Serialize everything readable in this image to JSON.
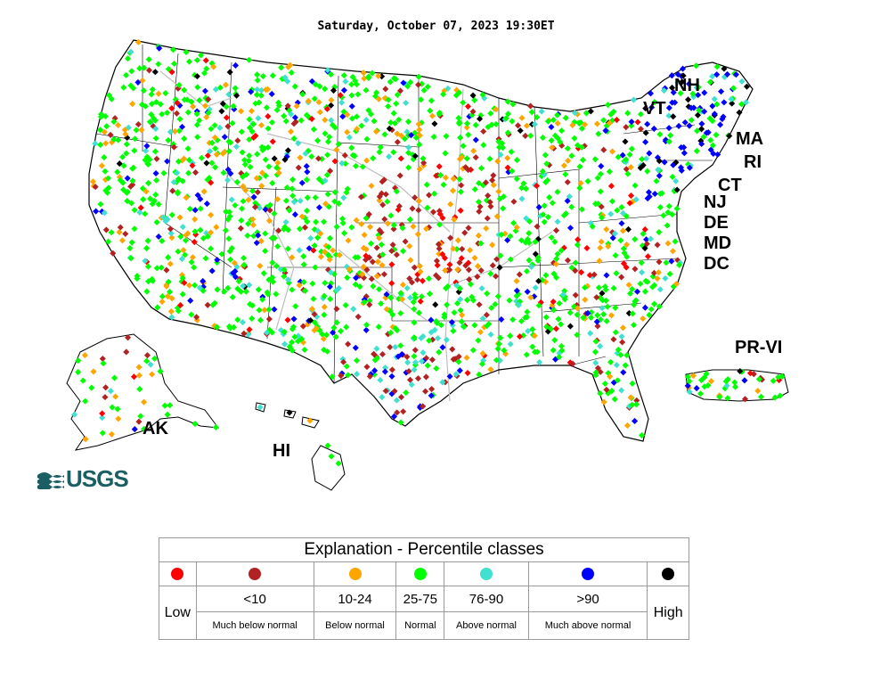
{
  "timestamp": "Saturday, October 07, 2023 19:30ET",
  "logo_text": "USGS",
  "state_labels": [
    "NH",
    "VT",
    "MA",
    "RI",
    "CT",
    "NJ",
    "DE",
    "MD",
    "DC",
    "PR-VI",
    "AK",
    "HI"
  ],
  "legend": {
    "title": "Explanation - Percentile classes",
    "classes": [
      {
        "range": "",
        "desc": "Low",
        "color": "#ff0000"
      },
      {
        "range": "<10",
        "desc": "Much below normal",
        "color": "#b22222"
      },
      {
        "range": "10-24",
        "desc": "Below normal",
        "color": "#ffa500"
      },
      {
        "range": "25-75",
        "desc": "Normal",
        "color": "#00ff00"
      },
      {
        "range": "76-90",
        "desc": "Above normal",
        "color": "#40e0d0"
      },
      {
        "range": ">90",
        "desc": "Much above normal",
        "color": "#0000ff"
      },
      {
        "range": "",
        "desc": "High",
        "color": "#000000"
      }
    ]
  }
}
